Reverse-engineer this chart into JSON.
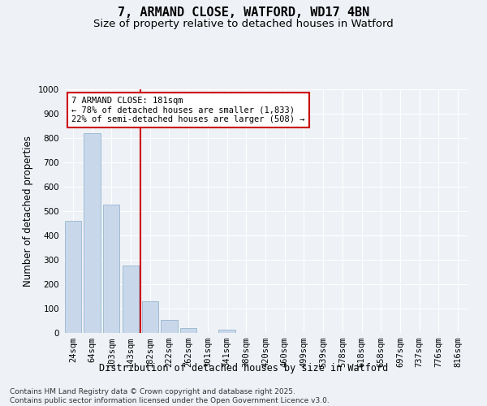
{
  "title_line1": "7, ARMAND CLOSE, WATFORD, WD17 4BN",
  "title_line2": "Size of property relative to detached houses in Watford",
  "xlabel": "Distribution of detached houses by size in Watford",
  "ylabel": "Number of detached properties",
  "categories": [
    "24sqm",
    "64sqm",
    "103sqm",
    "143sqm",
    "182sqm",
    "222sqm",
    "262sqm",
    "301sqm",
    "341sqm",
    "380sqm",
    "420sqm",
    "460sqm",
    "499sqm",
    "539sqm",
    "578sqm",
    "618sqm",
    "658sqm",
    "697sqm",
    "737sqm",
    "776sqm",
    "816sqm"
  ],
  "values": [
    460,
    820,
    527,
    277,
    130,
    55,
    20,
    0,
    15,
    0,
    0,
    0,
    0,
    0,
    0,
    0,
    0,
    0,
    0,
    0,
    0
  ],
  "bar_color": "#c8d8ea",
  "bar_edge_color": "#a0bcd4",
  "vline_color": "#cc0000",
  "annotation_text": "7 ARMAND CLOSE: 181sqm\n← 78% of detached houses are smaller (1,833)\n22% of semi-detached houses are larger (508) →",
  "annotation_box_color": "#ffffff",
  "annotation_box_edge": "#cc0000",
  "ylim": [
    0,
    1000
  ],
  "yticks": [
    0,
    100,
    200,
    300,
    400,
    500,
    600,
    700,
    800,
    900,
    1000
  ],
  "footnote": "Contains HM Land Registry data © Crown copyright and database right 2025.\nContains public sector information licensed under the Open Government Licence v3.0.",
  "bg_color": "#eef2f7",
  "plot_bg_color": "#eef2f7",
  "grid_color": "#ffffff",
  "title_fontsize": 11,
  "subtitle_fontsize": 9.5,
  "axis_label_fontsize": 8.5,
  "tick_fontsize": 7.5,
  "annot_fontsize": 7.5,
  "footnote_fontsize": 6.5
}
